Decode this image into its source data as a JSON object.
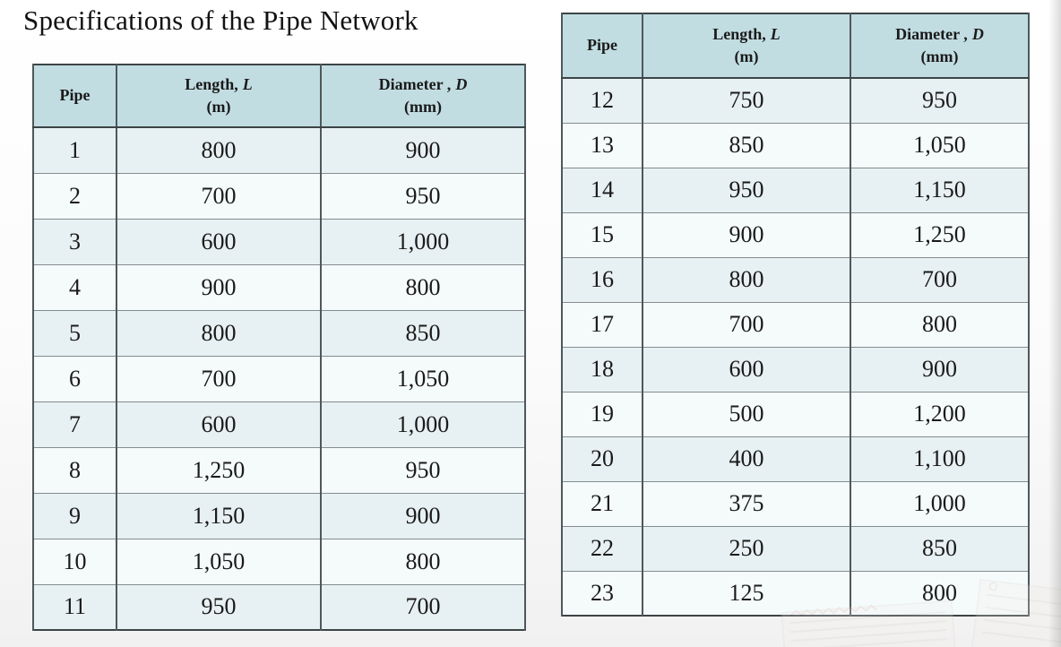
{
  "page": {
    "title": "Specifications of the Pipe Network"
  },
  "colors": {
    "header_bg": "#c2dde2",
    "row_odd": "#e7f0f2",
    "row_even": "#f5fafb",
    "border_dark": "#3c4446",
    "border_light": "#848c8f",
    "text": "#1a1a1a"
  },
  "tables": [
    {
      "name": "pipes-1-11",
      "headers": {
        "pipe": "Pipe",
        "length_label": "Length,",
        "length_symbol": "L",
        "length_unit": "(m)",
        "diameter_label": "Diameter ,",
        "diameter_symbol": "D",
        "diameter_unit": "(mm)"
      },
      "rows": [
        [
          "1",
          "800",
          "900"
        ],
        [
          "2",
          "700",
          "950"
        ],
        [
          "3",
          "600",
          "1,000"
        ],
        [
          "4",
          "900",
          "800"
        ],
        [
          "5",
          "800",
          "850"
        ],
        [
          "6",
          "700",
          "1,050"
        ],
        [
          "7",
          "600",
          "1,000"
        ],
        [
          "8",
          "1,250",
          "950"
        ],
        [
          "9",
          "1,150",
          "900"
        ],
        [
          "10",
          "1,050",
          "800"
        ],
        [
          "11",
          "950",
          "700"
        ]
      ]
    },
    {
      "name": "pipes-12-23",
      "headers": {
        "pipe": "Pipe",
        "length_label": "Length,",
        "length_symbol": "L",
        "length_unit": "(m)",
        "diameter_label": "Diameter ,",
        "diameter_symbol": "D",
        "diameter_unit": "(mm)"
      },
      "rows": [
        [
          "12",
          "750",
          "950"
        ],
        [
          "13",
          "850",
          "1,050"
        ],
        [
          "14",
          "950",
          "1,150"
        ],
        [
          "15",
          "900",
          "1,250"
        ],
        [
          "16",
          "800",
          "700"
        ],
        [
          "17",
          "700",
          "800"
        ],
        [
          "18",
          "600",
          "900"
        ],
        [
          "19",
          "500",
          "1,200"
        ],
        [
          "20",
          "400",
          "1,100"
        ],
        [
          "21",
          "375",
          "1,000"
        ],
        [
          "22",
          "250",
          "850"
        ],
        [
          "23",
          "125",
          "800"
        ]
      ]
    }
  ]
}
